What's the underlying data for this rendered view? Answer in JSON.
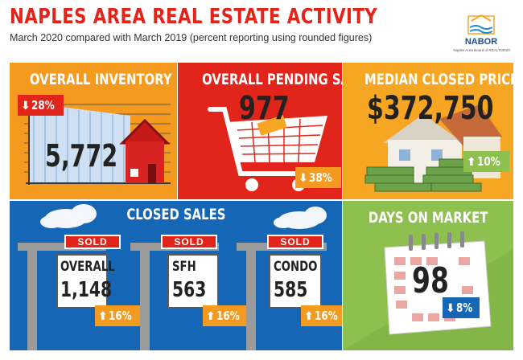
{
  "header": {
    "title": "NAPLES AREA REAL ESTATE ACTIVITY",
    "subtitle": "March 2020 compared with March 2019 (percent reporting using rounded figures)",
    "logo_text": "NABOR",
    "logo_sub": "Naples Area Board of REALTORS®"
  },
  "inventory": {
    "title": "OVERALL INVENTORY",
    "value": "5,772",
    "change": "28%",
    "direction": "down",
    "color": "#f39a1f"
  },
  "pending": {
    "title": "OVERALL PENDING SALES",
    "value": "977",
    "change": "38%",
    "direction": "down",
    "color": "#e1251b"
  },
  "price": {
    "title": "MEDIAN CLOSED PRICE",
    "value": "$372,750",
    "change": "10%",
    "direction": "up",
    "color": "#f6a623"
  },
  "closed": {
    "title": "CLOSED SALES",
    "sold_label": "SOLD",
    "signs": [
      {
        "label": "OVERALL",
        "value": "1,148",
        "change": "16%",
        "direction": "up"
      },
      {
        "label": "SFH",
        "value": "563",
        "change": "16%",
        "direction": "up"
      },
      {
        "label": "CONDO",
        "value": "585",
        "change": "16%",
        "direction": "up"
      }
    ]
  },
  "dom": {
    "title": "DAYS ON MARKET",
    "value": "98",
    "change": "8%",
    "direction": "down"
  },
  "colors": {
    "up_badge": "#f39a1f",
    "down_badge": "#e1251b",
    "down_badge_blue": "#1566b4",
    "title_red": "#e1251b"
  }
}
